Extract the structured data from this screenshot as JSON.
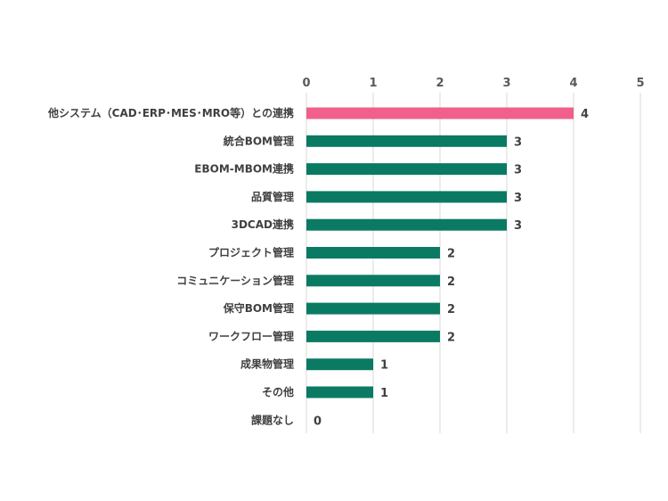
{
  "chart_data": {
    "type": "bar",
    "orientation": "horizontal",
    "title": "",
    "xlabel": "",
    "ylabel": "",
    "xlim": [
      0,
      5
    ],
    "x_ticks": [
      0,
      1,
      2,
      3,
      4,
      5
    ],
    "x_axis_position": "top",
    "grid": true,
    "legend": "none",
    "categories": [
      "他システム（CAD･ERP･MES･MRO等）との連携",
      "統合BOM管理",
      "EBOM-MBOM連携",
      "品質管理",
      "3DCAD連携",
      "プロジェクト管理",
      "コミュニケーション管理",
      "保守BOM管理",
      "ワークフロー管理",
      "成果物管理",
      "その他",
      "課題なし"
    ],
    "values": [
      4,
      3,
      3,
      3,
      3,
      2,
      2,
      2,
      2,
      1,
      1,
      0
    ],
    "highlight_index": 0,
    "colors": {
      "highlight": "#f0608a",
      "default": "#0a7a63",
      "grid": "#d9d9d9"
    }
  }
}
